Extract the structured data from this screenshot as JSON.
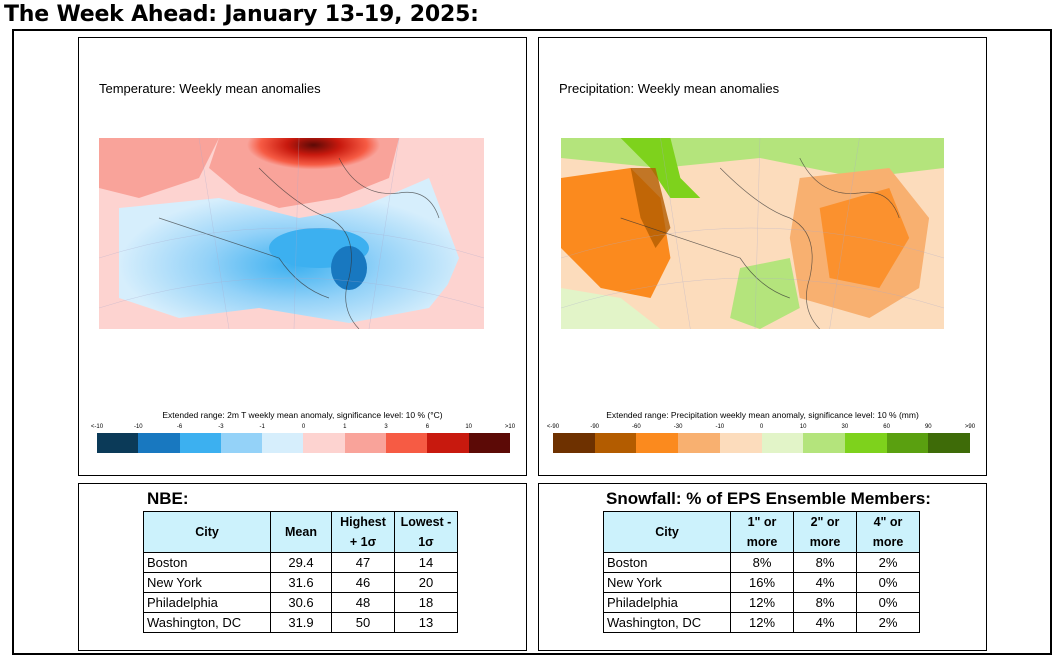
{
  "title": "The Week Ahead: January 13-19, 2025:",
  "temperature": {
    "title": "Temperature: Weekly mean anomalies",
    "caption": "Extended range: 2m T weekly mean anomaly, significance level: 10 % (°C)",
    "ticks": [
      "<-10",
      "-10",
      "-6",
      "-3",
      "-1",
      "0",
      "1",
      "3",
      "6",
      "10",
      ">10"
    ],
    "colors": [
      "#0b3a58",
      "#1878c0",
      "#3cb0f0",
      "#94d2f8",
      "#d6eefc",
      "#fdd3d0",
      "#f9a39a",
      "#f65b44",
      "#c8190e",
      "#5c0a06"
    ]
  },
  "precipitation": {
    "title": "Precipitation: Weekly mean anomalies",
    "caption": "Extended range: Precipitation weekly mean anomaly, significance level: 10 % (mm)",
    "ticks": [
      "<-90",
      "-90",
      "-60",
      "-30",
      "-10",
      "0",
      "10",
      "30",
      "60",
      "90",
      ">90"
    ],
    "colors": [
      "#6e3100",
      "#b35c00",
      "#fb8a1e",
      "#f8b070",
      "#fcdcbc",
      "#e2f4c8",
      "#b4e47c",
      "#7ed21c",
      "#5aa010",
      "#3e6b08"
    ]
  },
  "nbe": {
    "title": "NBE:",
    "headers": {
      "city": "City",
      "mean": "Mean",
      "high": "Highest + 1σ",
      "low": "Lowest - 1σ"
    },
    "rows": [
      {
        "city": "Boston",
        "mean": "29.4",
        "high": "47",
        "low": "14"
      },
      {
        "city": "New York",
        "mean": "31.6",
        "high": "46",
        "low": "20"
      },
      {
        "city": "Philadelphia",
        "mean": "30.6",
        "high": "48",
        "low": "18"
      },
      {
        "city": "Washington, DC",
        "mean": "31.9",
        "high": "50",
        "low": "13"
      }
    ]
  },
  "snowfall": {
    "title": "Snowfall: % of EPS Ensemble Members:",
    "headers": {
      "city": "City",
      "one": "1\" or more",
      "two": "2\" or more",
      "four": "4\" or more"
    },
    "rows": [
      {
        "city": "Boston",
        "one": "8%",
        "two": "8%",
        "four": "2%"
      },
      {
        "city": "New York",
        "one": "16%",
        "two": "4%",
        "four": "0%"
      },
      {
        "city": "Philadelphia",
        "one": "12%",
        "two": "8%",
        "four": "0%"
      },
      {
        "city": "Washington, DC",
        "one": "12%",
        "two": "4%",
        "four": "2%"
      }
    ]
  }
}
